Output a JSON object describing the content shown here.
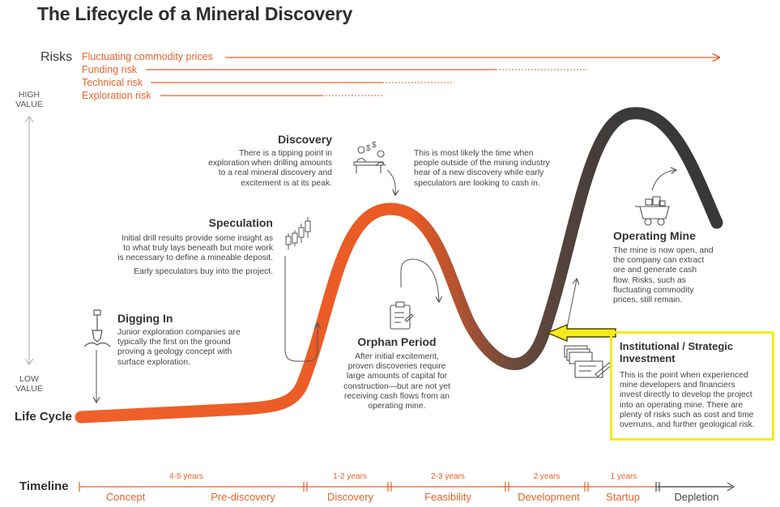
{
  "title": "The Lifecycle of a Mineral Discovery",
  "risks": {
    "label": "Risks",
    "items": [
      "Fluctuating commodity prices",
      "Funding risk",
      "Technical risk",
      "Exploration risk"
    ]
  },
  "value_axis": {
    "high_line1": "HIGH",
    "high_line2": "VALUE",
    "low_line1": "LOW",
    "low_line2": "VALUE"
  },
  "life_cycle_label": "Life Cycle",
  "stages": {
    "digging_in": {
      "title": "Digging In",
      "lines": [
        "Junior exploration companies are",
        "typically the first on the ground",
        "proving a geology concept with",
        "surface exploration."
      ]
    },
    "speculation": {
      "title": "Speculation",
      "lines": [
        "Initial drill results provide some insight as",
        "to what truly lays beneath but more work",
        "is necessary to define a mineable deposit."
      ],
      "extra": "Early speculators buy into the project."
    },
    "discovery": {
      "title": "Discovery",
      "lines": [
        "There is a tipping point in",
        "exploration when drilling amounts",
        "to a real mineral discovery and",
        "excitement is at its peak."
      ],
      "side_lines": [
        "This is most likely the time when",
        "people outside of the mining industry",
        "hear of a new discovery while early",
        "speculators are looking to cash in."
      ]
    },
    "orphan": {
      "title": "Orphan Period",
      "lines": [
        "After initial excitement,",
        "proven discoveries require",
        "large amounts of capital for",
        "construction—but are not yet",
        "receiving cash flows from an",
        "operating mine."
      ]
    },
    "operating": {
      "title": "Operating Mine",
      "lines": [
        "The mine is now open, and",
        "the company can extract",
        "ore and generate cash",
        "flow. Risks, such as",
        "fluctuating commodity",
        "prices, still remain."
      ]
    },
    "institutional": {
      "title_line1": "Institutional / Strategic",
      "title_line2": "Investment",
      "lines": [
        "This is the point when experienced",
        "mine developers and financiers",
        "invest directly to develop the project",
        "into an operating mine. There are",
        "plenty of risks such as cost and time",
        "overruns, and further geological risk."
      ]
    }
  },
  "timeline": {
    "label": "Timeline",
    "durations": [
      "4-5 years",
      "1-2 years",
      "2-3 years",
      "2 years",
      "1 years"
    ],
    "phases": [
      "Concept",
      "Pre-discovery",
      "Discovery",
      "Feasibility",
      "Development",
      "Startup",
      "Depletion"
    ]
  },
  "colors": {
    "accent": "#e8622a",
    "curve_dark": "#3a3a3a",
    "highlight": "#f2ec1a",
    "arrow": "#f2ec1a"
  }
}
